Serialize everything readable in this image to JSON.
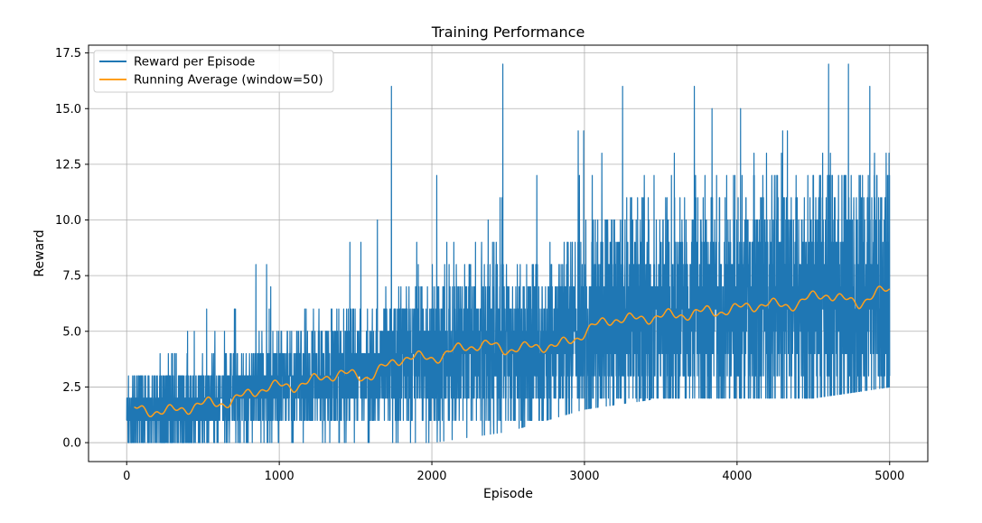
{
  "chart_data": {
    "type": "line",
    "title": "Training Performance",
    "xlabel": "Episode",
    "ylabel": "Reward",
    "xlim": [
      -250,
      5250
    ],
    "ylim": [
      -0.85,
      17.85
    ],
    "xticks": [
      0,
      1000,
      2000,
      3000,
      4000,
      5000
    ],
    "xtick_labels": [
      "0",
      "1000",
      "2000",
      "3000",
      "4000",
      "5000"
    ],
    "yticks": [
      0,
      2.5,
      5,
      7.5,
      10,
      12.5,
      15,
      17.5
    ],
    "ytick_labels": [
      "0.0",
      "2.5",
      "5.0",
      "7.5",
      "10.0",
      "12.5",
      "15.0",
      "17.5"
    ],
    "grid": true,
    "legend_position": "upper-left",
    "series": [
      {
        "name": "Reward per Episode",
        "color": "#1f77b4",
        "episodes": [
          0,
          5000
        ],
        "approx_min_trend": [
          [
            0,
            0
          ],
          [
            1000,
            0
          ],
          [
            2000,
            0
          ],
          [
            2500,
            0.5
          ],
          [
            3000,
            1.5
          ],
          [
            3500,
            2
          ],
          [
            4000,
            2
          ],
          [
            4500,
            2
          ],
          [
            5000,
            2.5
          ]
        ],
        "approx_max_trend": [
          [
            0,
            6
          ],
          [
            500,
            6
          ],
          [
            1000,
            9
          ],
          [
            1500,
            10
          ],
          [
            2000,
            12
          ],
          [
            2500,
            14
          ],
          [
            3000,
            14
          ],
          [
            3500,
            15
          ],
          [
            4000,
            15
          ],
          [
            4500,
            16
          ],
          [
            5000,
            15
          ]
        ],
        "peaks": [
          [
            1735,
            16
          ],
          [
            2465,
            17
          ],
          [
            3250,
            16
          ],
          [
            3720,
            16
          ],
          [
            4600,
            17
          ],
          [
            4730,
            17
          ],
          [
            4870,
            16
          ]
        ]
      },
      {
        "name": "Running Average (window=50)",
        "color": "#ff9f1a",
        "x": [
          50,
          200,
          400,
          600,
          800,
          1000,
          1200,
          1400,
          1600,
          1800,
          2000,
          2200,
          2400,
          2600,
          2800,
          3000,
          3200,
          3400,
          3600,
          3800,
          4000,
          4200,
          4400,
          4600,
          4800,
          5000
        ],
        "values": [
          1.4,
          1.5,
          1.5,
          1.8,
          2.2,
          2.5,
          2.8,
          3.0,
          3.1,
          3.7,
          3.9,
          4.2,
          4.4,
          4.2,
          4.3,
          5.0,
          5.5,
          5.7,
          5.6,
          6.0,
          5.9,
          6.3,
          6.2,
          6.7,
          6.3,
          6.8
        ]
      }
    ]
  }
}
